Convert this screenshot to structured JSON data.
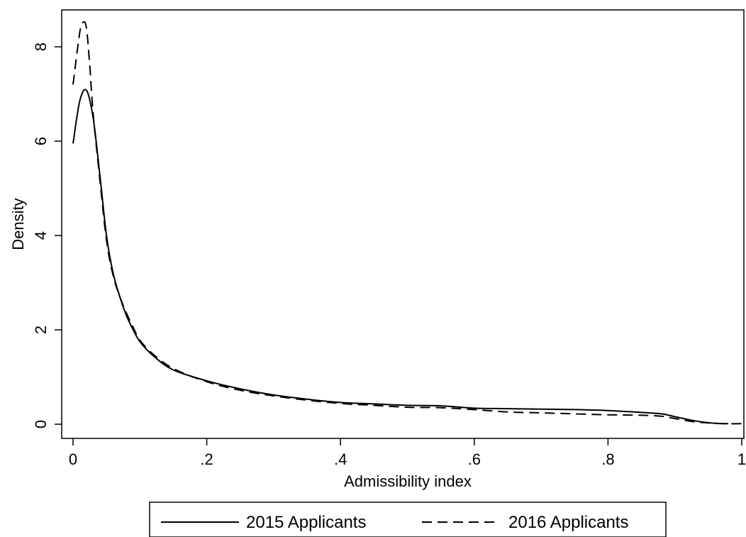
{
  "chart_data": {
    "type": "line",
    "title": "",
    "xlabel": "Admissibility index",
    "ylabel": "Density",
    "xlim": [
      0,
      1
    ],
    "ylim": [
      0,
      8.6
    ],
    "x_ticks": [
      0,
      0.2,
      0.4,
      0.6,
      0.8,
      1
    ],
    "x_tick_labels": [
      "0",
      ".2",
      ".4",
      ".6",
      ".8",
      "1"
    ],
    "y_ticks": [
      0,
      2,
      4,
      6,
      8
    ],
    "y_tick_labels": [
      "0",
      "2",
      "4",
      "6",
      "8"
    ],
    "grid": false,
    "legend_position": "bottom",
    "series": [
      {
        "name": "2015 Applicants",
        "style": "solid",
        "color": "#000000",
        "x": [
          0,
          0.01,
          0.02,
          0.03,
          0.04,
          0.05,
          0.06,
          0.07,
          0.08,
          0.09,
          0.1,
          0.12,
          0.15,
          0.2,
          0.25,
          0.3,
          0.35,
          0.4,
          0.45,
          0.5,
          0.55,
          0.6,
          0.65,
          0.7,
          0.75,
          0.8,
          0.85,
          0.88,
          0.9,
          0.93,
          0.96,
          0.98
        ],
        "y": [
          5.95,
          6.85,
          7.08,
          6.5,
          5.3,
          4.0,
          3.2,
          2.7,
          2.3,
          2.0,
          1.75,
          1.45,
          1.15,
          0.92,
          0.75,
          0.62,
          0.53,
          0.46,
          0.43,
          0.4,
          0.39,
          0.34,
          0.33,
          0.32,
          0.31,
          0.29,
          0.25,
          0.22,
          0.16,
          0.07,
          0.02,
          0.01
        ]
      },
      {
        "name": "2016 Applicants",
        "style": "dashed",
        "color": "#000000",
        "x": [
          0,
          0.01,
          0.015,
          0.02,
          0.025,
          0.03,
          0.04,
          0.05,
          0.06,
          0.07,
          0.08,
          0.09,
          0.1,
          0.12,
          0.15,
          0.2,
          0.25,
          0.3,
          0.35,
          0.4,
          0.45,
          0.5,
          0.55,
          0.6,
          0.65,
          0.7,
          0.75,
          0.8,
          0.85,
          0.88,
          0.9,
          0.93,
          0.96,
          0.98,
          1.0
        ],
        "y": [
          7.2,
          8.3,
          8.52,
          8.4,
          7.6,
          6.6,
          5.2,
          3.9,
          3.15,
          2.7,
          2.35,
          2.05,
          1.78,
          1.48,
          1.18,
          0.9,
          0.72,
          0.6,
          0.51,
          0.44,
          0.4,
          0.36,
          0.35,
          0.31,
          0.26,
          0.24,
          0.22,
          0.2,
          0.19,
          0.17,
          0.12,
          0.05,
          0.02,
          0.01,
          0.01
        ]
      }
    ]
  }
}
